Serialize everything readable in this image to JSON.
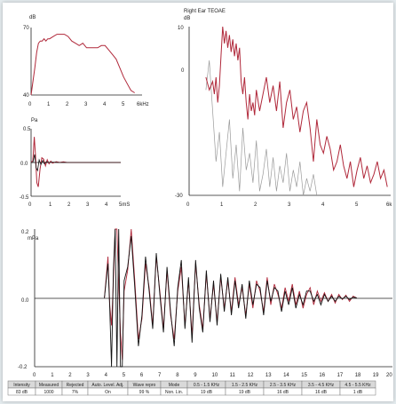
{
  "colors": {
    "red": "#b0283a",
    "black": "#111111",
    "grey": "#9a9a9a",
    "axis": "#222222"
  },
  "chart_data": [
    {
      "type": "line",
      "id": "stimulus-spectrum",
      "title": "",
      "ylabel": "dB",
      "xlabel": "",
      "x_unit_label": "6kHz",
      "xlim": [
        0,
        6
      ],
      "ylim": [
        40,
        70
      ],
      "xticks": [
        "0",
        "1",
        "2",
        "3",
        "4",
        "5"
      ],
      "yticks": [
        "70",
        "40"
      ],
      "series": [
        {
          "color": "red",
          "x": [
            0,
            0.2,
            0.3,
            0.4,
            0.5,
            0.6,
            0.7,
            0.8,
            0.9,
            1.0,
            1.2,
            1.4,
            1.6,
            1.8,
            2.0,
            2.2,
            2.4,
            2.6,
            2.8,
            3.0,
            3.2,
            3.4,
            3.6,
            3.8,
            4.0,
            4.2,
            4.4,
            4.6,
            4.8,
            5.0,
            5.2,
            5.4,
            5.6
          ],
          "y": [
            40,
            52,
            59,
            63,
            64,
            64,
            65,
            64,
            65,
            65,
            66,
            67,
            67,
            67,
            66,
            64,
            63,
            62,
            63,
            61,
            61,
            61,
            61,
            62,
            62,
            60,
            58,
            56,
            52,
            48,
            45,
            42,
            41
          ]
        }
      ]
    },
    {
      "type": "line",
      "id": "stimulus-waveform",
      "title": "",
      "ylabel": "Pa",
      "xlabel": "",
      "x_unit_label": "5mS",
      "xlim": [
        0,
        5
      ],
      "ylim": [
        -0.5,
        0.5
      ],
      "xticks": [
        "0",
        "1",
        "2",
        "3",
        "4"
      ],
      "yticks": [
        "0.5",
        "0.0",
        "-0.5"
      ],
      "series": [
        {
          "color": "red",
          "x": [
            0,
            0.1,
            0.18,
            0.25,
            0.32,
            0.4,
            0.5,
            0.6,
            0.7,
            0.8,
            0.9,
            1.0,
            1.1,
            1.2,
            1.4,
            1.6,
            1.8,
            2.0,
            2.5,
            3.0,
            3.5,
            4.0,
            4.5,
            5.0
          ],
          "y": [
            0.01,
            0.02,
            0.38,
            0.1,
            -0.3,
            -0.36,
            -0.1,
            0.07,
            0.05,
            -0.05,
            0.04,
            -0.02,
            0.02,
            -0.01,
            0.01,
            0.0,
            0.01,
            0.0,
            0.0,
            0.0,
            0.0,
            0.0,
            0.0,
            0.0
          ]
        },
        {
          "color": "black",
          "x": [
            0,
            0.1,
            0.2,
            0.28,
            0.36,
            0.45,
            0.55,
            0.65,
            0.75,
            0.85,
            1.0,
            1.2,
            1.5,
            2.0,
            3.0,
            4.0,
            5.0
          ],
          "y": [
            0.0,
            0.0,
            0.12,
            -0.08,
            -0.12,
            0.04,
            -0.03,
            0.03,
            -0.02,
            0.01,
            0.0,
            0.005,
            0.0,
            0.0,
            0.0,
            0.0,
            0.0
          ]
        }
      ]
    },
    {
      "type": "line",
      "id": "teoae-spectrum",
      "title": "Right Ear TEOAE",
      "ylabel": "dB",
      "xlabel": "",
      "x_unit_label": "6k",
      "xlim": [
        0,
        6
      ],
      "ylim": [
        -30,
        10
      ],
      "xticks": [
        "0",
        "1",
        "2",
        "3",
        "4",
        "5"
      ],
      "yticks": [
        "10",
        "0",
        "-30"
      ],
      "series": [
        {
          "color": "red",
          "x": [
            0.5,
            0.6,
            0.7,
            0.75,
            0.8,
            0.85,
            0.9,
            0.95,
            1.0,
            1.05,
            1.1,
            1.15,
            1.2,
            1.25,
            1.3,
            1.35,
            1.4,
            1.45,
            1.5,
            1.55,
            1.6,
            1.65,
            1.7,
            1.75,
            1.8,
            1.85,
            1.9,
            1.95,
            2.0,
            2.1,
            2.2,
            2.3,
            2.4,
            2.5,
            2.6,
            2.7,
            2.8,
            2.9,
            3.0,
            3.1,
            3.2,
            3.3,
            3.4,
            3.5,
            3.6,
            3.7,
            3.8,
            3.9,
            4.0,
            4.1,
            4.2,
            4.3,
            4.4,
            4.5,
            4.6,
            4.7,
            4.8,
            4.9,
            5.0,
            5.1,
            5.2,
            5.3,
            5.4,
            5.5,
            5.6,
            5.7,
            5.8,
            5.9
          ],
          "y": [
            -2,
            -5,
            -3,
            -6,
            -2,
            -8,
            -4,
            3,
            10,
            6,
            9,
            5,
            8,
            4,
            7,
            3,
            6,
            2,
            5,
            -3,
            -6,
            -2,
            -8,
            -12,
            -6,
            -10,
            -8,
            -11,
            -5,
            -10,
            -6,
            -2,
            -8,
            -4,
            -10,
            -3,
            -14,
            -8,
            -5,
            -12,
            -9,
            -15,
            -10,
            -8,
            -14,
            -22,
            -12,
            -18,
            -20,
            -16,
            -19,
            -24,
            -22,
            -18,
            -23,
            -26,
            -22,
            -28,
            -24,
            -21,
            -26,
            -23,
            -27,
            -25,
            -22,
            -26,
            -24,
            -28
          ]
        },
        {
          "color": "grey",
          "x": [
            0.5,
            0.6,
            0.7,
            0.8,
            0.9,
            1.0,
            1.1,
            1.2,
            1.3,
            1.4,
            1.5,
            1.6,
            1.7,
            1.8,
            1.9,
            2.0,
            2.1,
            2.2,
            2.3,
            2.4,
            2.5,
            2.6,
            2.7,
            2.8,
            2.9,
            3.0,
            3.1,
            3.2,
            3.3,
            3.4,
            3.5,
            3.6,
            3.7,
            3.8
          ],
          "y": [
            -5,
            2,
            -10,
            -22,
            -15,
            -28,
            -20,
            -12,
            -26,
            -18,
            -29,
            -14,
            -24,
            -20,
            -27,
            -17,
            -29,
            -25,
            -19,
            -28,
            -21,
            -29,
            -23,
            -27,
            -20,
            -29,
            -24,
            -28,
            -22,
            -30,
            -26,
            -29,
            -25,
            -30
          ]
        }
      ]
    },
    {
      "type": "line",
      "id": "response-waveform",
      "title": "",
      "ylabel": "mPa",
      "xlabel": "",
      "x_unit_label": "20",
      "xlim": [
        0,
        20
      ],
      "ylim": [
        -0.2,
        0.2
      ],
      "xticks": [
        "0",
        "1",
        "2",
        "3",
        "4",
        "5",
        "6",
        "7",
        "8",
        "9",
        "10",
        "11",
        "12",
        "13",
        "14",
        "15",
        "16",
        "17",
        "18",
        "19"
      ],
      "yticks": [
        "0.2",
        "0.0",
        "-0.2"
      ],
      "series": [
        {
          "color": "red",
          "x": [
            3.9,
            4.0,
            4.1,
            4.2,
            4.3,
            4.4,
            4.5,
            4.6,
            4.7,
            4.8,
            4.9,
            5.0,
            5.2,
            5.4,
            5.6,
            5.8,
            6.0,
            6.2,
            6.4,
            6.6,
            6.8,
            7.0,
            7.2,
            7.4,
            7.6,
            7.8,
            8.0,
            8.2,
            8.4,
            8.6,
            8.8,
            9.0,
            9.2,
            9.4,
            9.6,
            9.8,
            10.0,
            10.2,
            10.4,
            10.6,
            10.8,
            11.0,
            11.2,
            11.4,
            11.6,
            11.8,
            12.0,
            12.2,
            12.4,
            12.6,
            12.8,
            13.0,
            13.2,
            13.4,
            13.6,
            13.8,
            14.0,
            14.2,
            14.4,
            14.6,
            14.8,
            15.0,
            15.2,
            15.4,
            15.6,
            15.8,
            16.0,
            16.2,
            16.4,
            16.6,
            16.8,
            17.0,
            17.2,
            17.4,
            17.6,
            17.8,
            18.0
          ],
          "y": [
            0.0,
            0.06,
            0.12,
            -0.02,
            -0.08,
            0.05,
            0.2,
            0.2,
            0.04,
            -0.1,
            -0.18,
            0.02,
            0.08,
            0.2,
            0.05,
            -0.12,
            -0.06,
            0.1,
            0.03,
            -0.08,
            0.12,
            0.02,
            -0.09,
            0.08,
            -0.05,
            -0.12,
            0.02,
            0.09,
            -0.08,
            0.05,
            -0.11,
            0.1,
            -0.02,
            -0.09,
            0.07,
            -0.06,
            0.04,
            -0.07,
            0.06,
            -0.03,
            0.05,
            -0.04,
            0.06,
            -0.02,
            0.03,
            -0.05,
            0.04,
            -0.03,
            0.05,
            0.02,
            -0.04,
            0.06,
            -0.02,
            0.04,
            0.01,
            -0.03,
            0.03,
            -0.01,
            0.04,
            -0.02,
            0.02,
            -0.03,
            0.01,
            0.03,
            -0.02,
            0.02,
            -0.01,
            0.015,
            -0.01,
            0.01,
            -0.015,
            0.01,
            -0.005,
            0.008,
            -0.01,
            0.005,
            0.0
          ]
        },
        {
          "color": "black",
          "x": [
            3.9,
            4.0,
            4.1,
            4.2,
            4.3,
            4.4,
            4.5,
            4.6,
            4.7,
            4.8,
            4.9,
            5.0,
            5.2,
            5.4,
            5.6,
            5.8,
            6.0,
            6.2,
            6.4,
            6.6,
            6.8,
            7.0,
            7.2,
            7.4,
            7.6,
            7.8,
            8.0,
            8.2,
            8.4,
            8.6,
            8.8,
            9.0,
            9.2,
            9.4,
            9.6,
            9.8,
            10.0,
            10.2,
            10.4,
            10.6,
            10.8,
            11.0,
            11.2,
            11.4,
            11.6,
            11.8,
            12.0,
            12.2,
            12.4,
            12.6,
            12.8,
            13.0,
            13.2,
            13.4,
            13.6,
            13.8,
            14.0,
            14.2,
            14.4,
            14.6,
            14.8,
            15.0,
            15.2,
            15.4,
            15.6,
            15.8,
            16.0,
            16.2,
            16.4,
            16.6,
            16.8,
            17.0,
            17.2,
            17.4,
            17.6,
            17.8,
            18.0
          ],
          "y": [
            0.0,
            0.05,
            0.1,
            -0.03,
            -0.2,
            0.08,
            0.2,
            -0.2,
            0.2,
            -0.2,
            -0.2,
            0.05,
            0.09,
            0.18,
            0.03,
            -0.14,
            -0.05,
            0.12,
            0.02,
            -0.09,
            0.13,
            0.01,
            -0.1,
            0.09,
            -0.04,
            -0.14,
            0.03,
            0.11,
            -0.09,
            0.06,
            -0.13,
            0.11,
            -0.03,
            -0.1,
            0.08,
            -0.07,
            0.05,
            -0.08,
            0.07,
            -0.04,
            0.06,
            -0.05,
            0.05,
            -0.03,
            0.04,
            -0.06,
            0.05,
            -0.02,
            0.04,
            0.03,
            -0.05,
            0.05,
            -0.01,
            0.03,
            0.02,
            -0.04,
            0.02,
            -0.02,
            0.03,
            -0.03,
            0.01,
            -0.02,
            0.02,
            0.02,
            -0.01,
            0.01,
            -0.02,
            0.01,
            -0.01,
            0.005,
            -0.01,
            0.005,
            -0.003,
            0.005,
            -0.005,
            0.002,
            0.0
          ]
        }
      ]
    }
  ],
  "table": {
    "headers": [
      "Intensity",
      "Measured",
      "Rejected",
      "Auto. Level. Adj.",
      "Wave repro",
      "Mode",
      "0.5 - 1.5 KHz",
      "1.5 - 2.5 KHz",
      "2.5 - 3.5 KHz",
      "3.5 - 4.5 KHz",
      "4.5 - 5.5 KHz"
    ],
    "values": [
      "83 dB",
      "1000",
      "7%",
      "On",
      "99 %",
      "Non. Lin.",
      "19 dB",
      "19 dB",
      "16 dB",
      "16 dB",
      "1 dB"
    ]
  }
}
